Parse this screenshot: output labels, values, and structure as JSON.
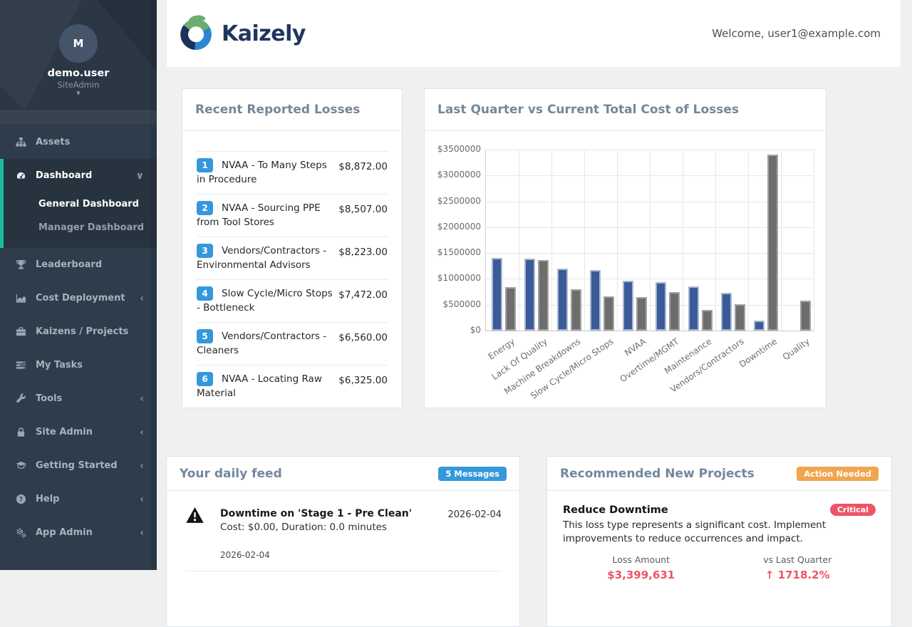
{
  "header": {
    "brand": "Kaizely",
    "welcome": "Welcome, user1@example.com"
  },
  "sidebar": {
    "user": {
      "initial": "M",
      "name": "demo.user",
      "role": "SiteAdmin"
    },
    "items": [
      {
        "label": "Assets",
        "icon": "sitemap-icon",
        "chevron": ""
      },
      {
        "label": "Dashboard",
        "icon": "gauge-icon",
        "chevron": "∨",
        "active": true,
        "children": [
          {
            "label": "General Dashboard",
            "active": true
          },
          {
            "label": "Manager Dashboard",
            "active": false
          }
        ]
      },
      {
        "label": "Leaderboard",
        "icon": "trophy-icon",
        "chevron": ""
      },
      {
        "label": "Cost Deployment",
        "icon": "area-chart-icon",
        "chevron": "‹"
      },
      {
        "label": "Kaizens / Projects",
        "icon": "briefcase-icon",
        "chevron": ""
      },
      {
        "label": "My Tasks",
        "icon": "tasks-icon",
        "chevron": ""
      },
      {
        "label": "Tools",
        "icon": "wrench-icon",
        "chevron": "‹"
      },
      {
        "label": "Site Admin",
        "icon": "lock-icon",
        "chevron": "‹"
      },
      {
        "label": "Getting Started",
        "icon": "graduation-cap-icon",
        "chevron": "‹"
      },
      {
        "label": "Help",
        "icon": "question-circle-icon",
        "chevron": "‹"
      },
      {
        "label": "App Admin",
        "icon": "cogs-icon",
        "chevron": "‹"
      }
    ]
  },
  "recent_losses": {
    "title": "Recent Reported Losses",
    "items": [
      {
        "rank": "1",
        "label": "NVAA - To Many Steps in Procedure",
        "amount": "$8,872.00"
      },
      {
        "rank": "2",
        "label": "NVAA - Sourcing PPE from Tool Stores",
        "amount": "$8,507.00"
      },
      {
        "rank": "3",
        "label": "Vendors/Contractors - Environmental Advisors",
        "amount": "$8,223.00"
      },
      {
        "rank": "4",
        "label": "Slow Cycle/Micro Stops - Bottleneck",
        "amount": "$7,472.00"
      },
      {
        "rank": "5",
        "label": "Vendors/Contractors - Cleaners",
        "amount": "$6,560.00"
      },
      {
        "rank": "6",
        "label": "NVAA - Locating Raw Material",
        "amount": "$6,325.00"
      }
    ]
  },
  "chart_data": {
    "type": "bar",
    "title": "Last Quarter vs Current Total Cost of Losses",
    "categories": [
      "Energy",
      "Lack Of Quality",
      "Machine Breakdowns",
      "Slow Cycle/Micro Stops",
      "NVAA",
      "Overtime/MGMT",
      "Maintenance",
      "Vendors/Contractors",
      "Downtime",
      "Quality"
    ],
    "series": [
      {
        "name": "Last Quarter",
        "color": "#3A5B98",
        "border_color": "#A9B7D3",
        "values": [
          1400000,
          1390000,
          1205000,
          1175000,
          965000,
          940000,
          860000,
          735000,
          187000,
          0
        ]
      },
      {
        "name": "Current",
        "color": "#6D6D6D",
        "border_color": "#A2A2A2",
        "values": [
          835000,
          1365000,
          795000,
          655000,
          645000,
          745000,
          395000,
          515000,
          3399631,
          575000
        ]
      }
    ],
    "ylim": [
      0,
      3500000
    ],
    "ytick_step": 500000,
    "y_prefix": "$",
    "grid": true,
    "legend": "none",
    "xlabel": "",
    "ylabel": ""
  },
  "daily_feed": {
    "title": "Your daily feed",
    "badge": "5 Messages",
    "items": [
      {
        "title": "Downtime on 'Stage 1 - Pre Clean'",
        "details": "Cost: $0.00, Duration: 0.0 minutes",
        "date": "2026-02-04",
        "date_below": "2026-02-04"
      }
    ]
  },
  "recommended": {
    "title": "Recommended New Projects",
    "badge": "Action Needed",
    "projects": [
      {
        "name": "Reduce Downtime",
        "severity": "Critical",
        "description": "This loss type represents a significant cost. Implement improvements to reduce occurrences and impact.",
        "stats": [
          {
            "label": "Loss Amount",
            "value": "$3,399,631"
          },
          {
            "label": "vs Last Quarter",
            "arrow": "↑",
            "value": "1718.2%"
          }
        ]
      }
    ]
  },
  "colors": {
    "sidebar_bg": "#2E3C4B",
    "accent_teal": "#1ABB9C",
    "badge_blue": "#3498DB",
    "bar_blue": "#3A5B98",
    "bar_gray": "#6D6D6D",
    "warning_orange": "#F0A54E",
    "critical_red": "#ED5565",
    "title_gray": "#73879C",
    "brand_navy": "#20365E",
    "page_bg": "#F0F0F0"
  }
}
